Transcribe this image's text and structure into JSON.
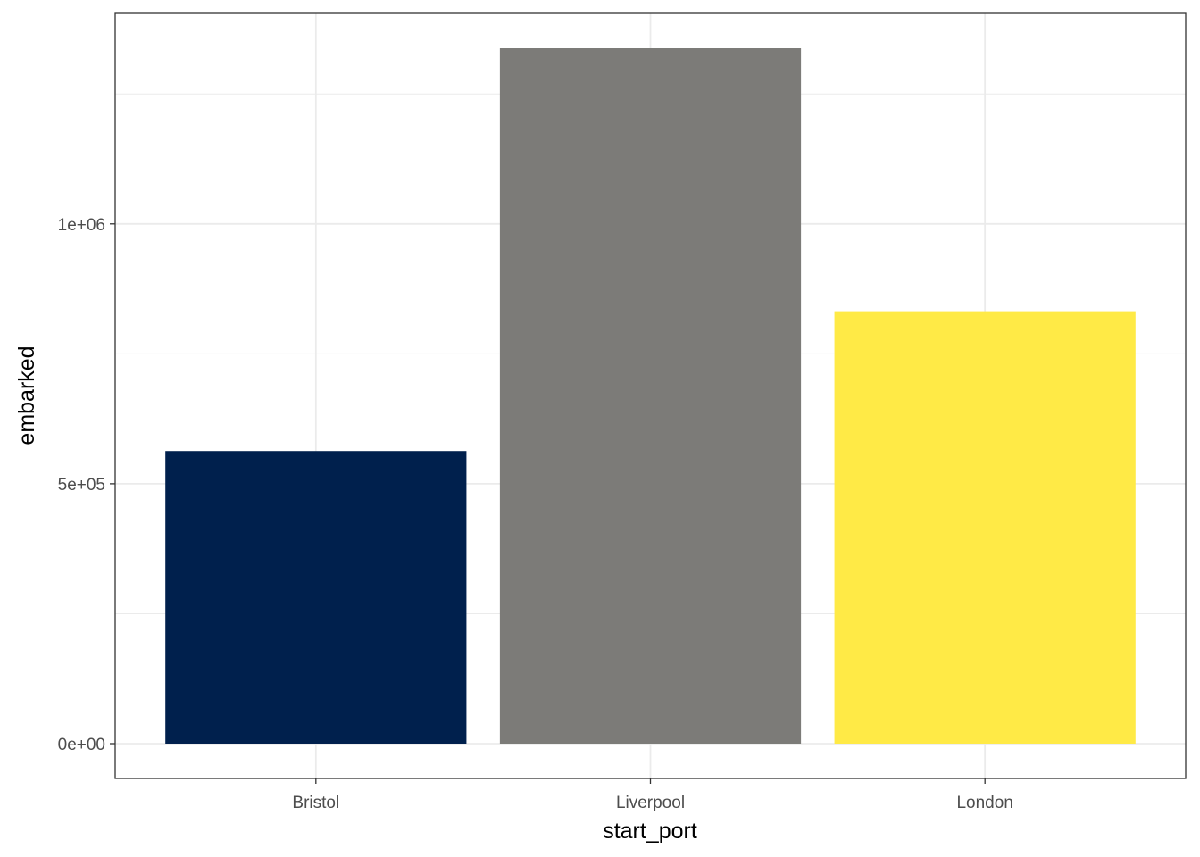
{
  "chart_data": {
    "type": "bar",
    "categories": [
      "Bristol",
      "Liverpool",
      "London"
    ],
    "values": [
      563000,
      1338000,
      832000
    ],
    "colors": [
      "#00204D",
      "#7C7B78",
      "#FFEA46"
    ],
    "title": "",
    "xlabel": "start_port",
    "ylabel": "embarked",
    "ylim": [
      -67000,
      1405000
    ],
    "y_ticks": [
      {
        "value": 0,
        "label": "0e+00"
      },
      {
        "value": 500000,
        "label": "5e+05"
      },
      {
        "value": 1000000,
        "label": "1e+06"
      }
    ],
    "y_minor_ticks": [
      250000,
      750000,
      1250000
    ],
    "grid": true,
    "legend": "none",
    "theme": "bw"
  }
}
